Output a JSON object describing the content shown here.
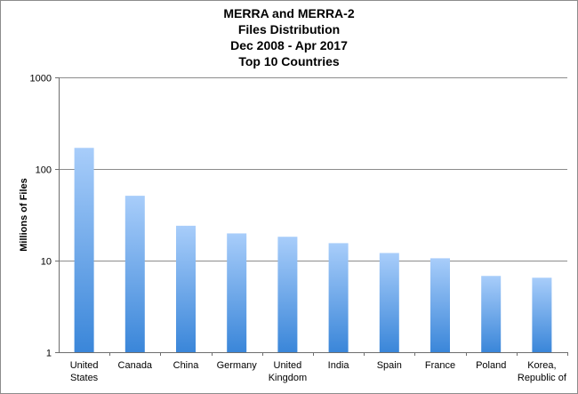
{
  "chart_data": {
    "type": "bar",
    "title": [
      "MERRA and MERRA-2",
      "Files Distribution",
      "Dec 2008 - Apr 2017",
      "Top 10 Countries"
    ],
    "xlabel": "",
    "ylabel": "Millions of Files",
    "yscale": "log",
    "ylim": [
      1,
      1000
    ],
    "yticks": [
      1,
      10,
      100,
      1000
    ],
    "ytick_labels": [
      "1",
      "10",
      "100",
      "1000"
    ],
    "grid": true,
    "categories": [
      [
        "United",
        "States"
      ],
      [
        "Canada"
      ],
      [
        "China"
      ],
      [
        "Germany"
      ],
      [
        "United",
        "Kingdom"
      ],
      [
        "India"
      ],
      [
        "Spain"
      ],
      [
        "France"
      ],
      [
        "Poland"
      ],
      [
        "Korea,",
        "Republic of"
      ]
    ],
    "values": [
      170,
      51,
      24,
      19.8,
      18.2,
      15.5,
      12.1,
      10.6,
      6.8,
      6.5
    ],
    "colors": {
      "bar_top": "#a8cdfa",
      "bar_bottom": "#3a86d9",
      "grid": "#8c8c8c",
      "axis": "#6e6e6e"
    }
  }
}
